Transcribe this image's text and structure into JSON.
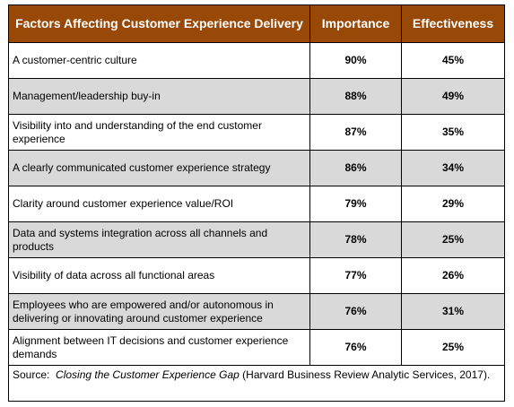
{
  "table": {
    "header": [
      "Factors Affecting Customer Experience Delivery",
      "Importance",
      "Effectiveness"
    ],
    "rows": [
      [
        "A customer-centric culture",
        "90%",
        "45%"
      ],
      [
        "Management/leadership buy-in",
        "88%",
        "49%"
      ],
      [
        "Visibility into and understanding of the end customer experience",
        "87%",
        "35%"
      ],
      [
        "A clearly communicated customer experience strategy",
        "86%",
        "34%"
      ],
      [
        "Clarity around customer experience value/ROI",
        "79%",
        "29%"
      ],
      [
        "Data and systems integration across all channels and products",
        "78%",
        "25%"
      ],
      [
        "Visibility of data across all functional areas",
        "77%",
        "26%"
      ],
      [
        "Employees who are empowered and/or autonomous in delivering or innovating around customer experience",
        "76%",
        "31%"
      ],
      [
        "Alignment between IT decisions and customer experience demands",
        "76%",
        "25%"
      ]
    ],
    "source": {
      "prefix": "Source:",
      "title": "Closing the Customer Experience Gap",
      "rest": "(Harvard Business Review Analytic Services, 2017)."
    }
  }
}
